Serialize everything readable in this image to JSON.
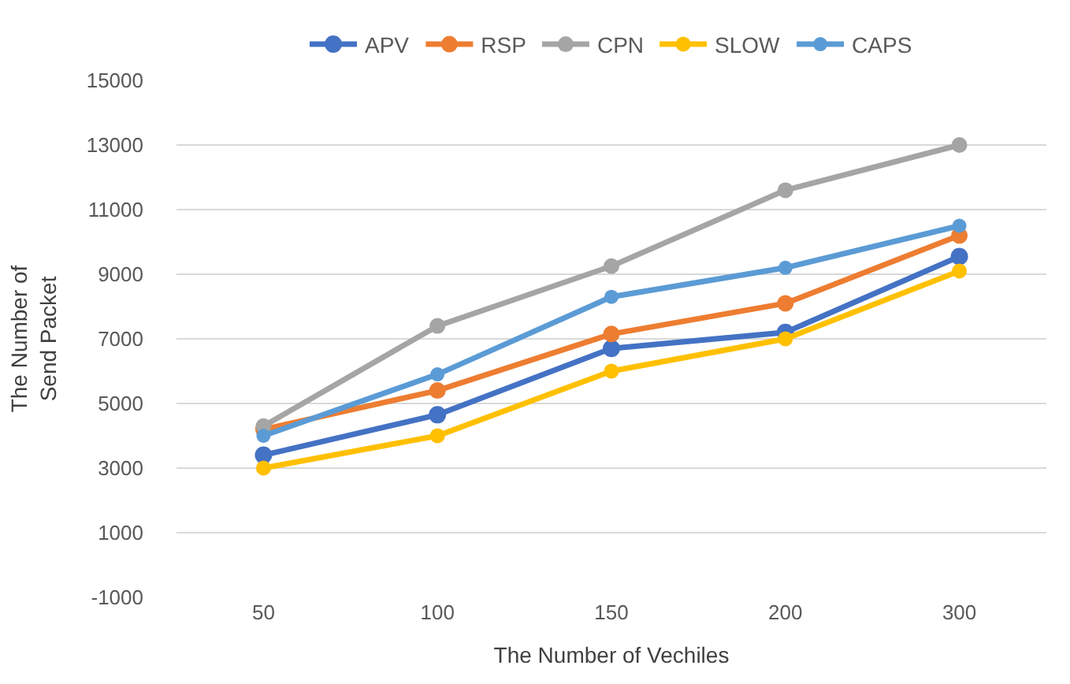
{
  "chart_data": {
    "type": "line",
    "xlabel": "The Number of Vechiles",
    "ylabel": "The Number of\nSend Packet",
    "categories": [
      "50",
      "100",
      "150",
      "200",
      "300"
    ],
    "series": [
      {
        "name": "APV",
        "color": "#4472c4",
        "values": [
          3400,
          4650,
          6700,
          7200,
          9550
        ]
      },
      {
        "name": "RSP",
        "color": "#ed7d31",
        "values": [
          4200,
          5400,
          7150,
          8100,
          10200
        ]
      },
      {
        "name": "CPN",
        "color": "#a5a5a5",
        "values": [
          4300,
          7400,
          9250,
          11600,
          13000
        ]
      },
      {
        "name": "SLOW",
        "color": "#ffc000",
        "values": [
          3000,
          4000,
          6000,
          7000,
          9100
        ]
      },
      {
        "name": "CAPS",
        "color": "#5b9bd5",
        "values": [
          4000,
          5900,
          8300,
          9200,
          10500
        ]
      }
    ],
    "ylim": [
      -1000,
      15000
    ],
    "yticks": [
      -1000,
      1000,
      3000,
      5000,
      7000,
      9000,
      11000,
      13000,
      15000
    ],
    "grid": "y",
    "legend": "top",
    "marker": "circle",
    "line_style": "solid"
  }
}
